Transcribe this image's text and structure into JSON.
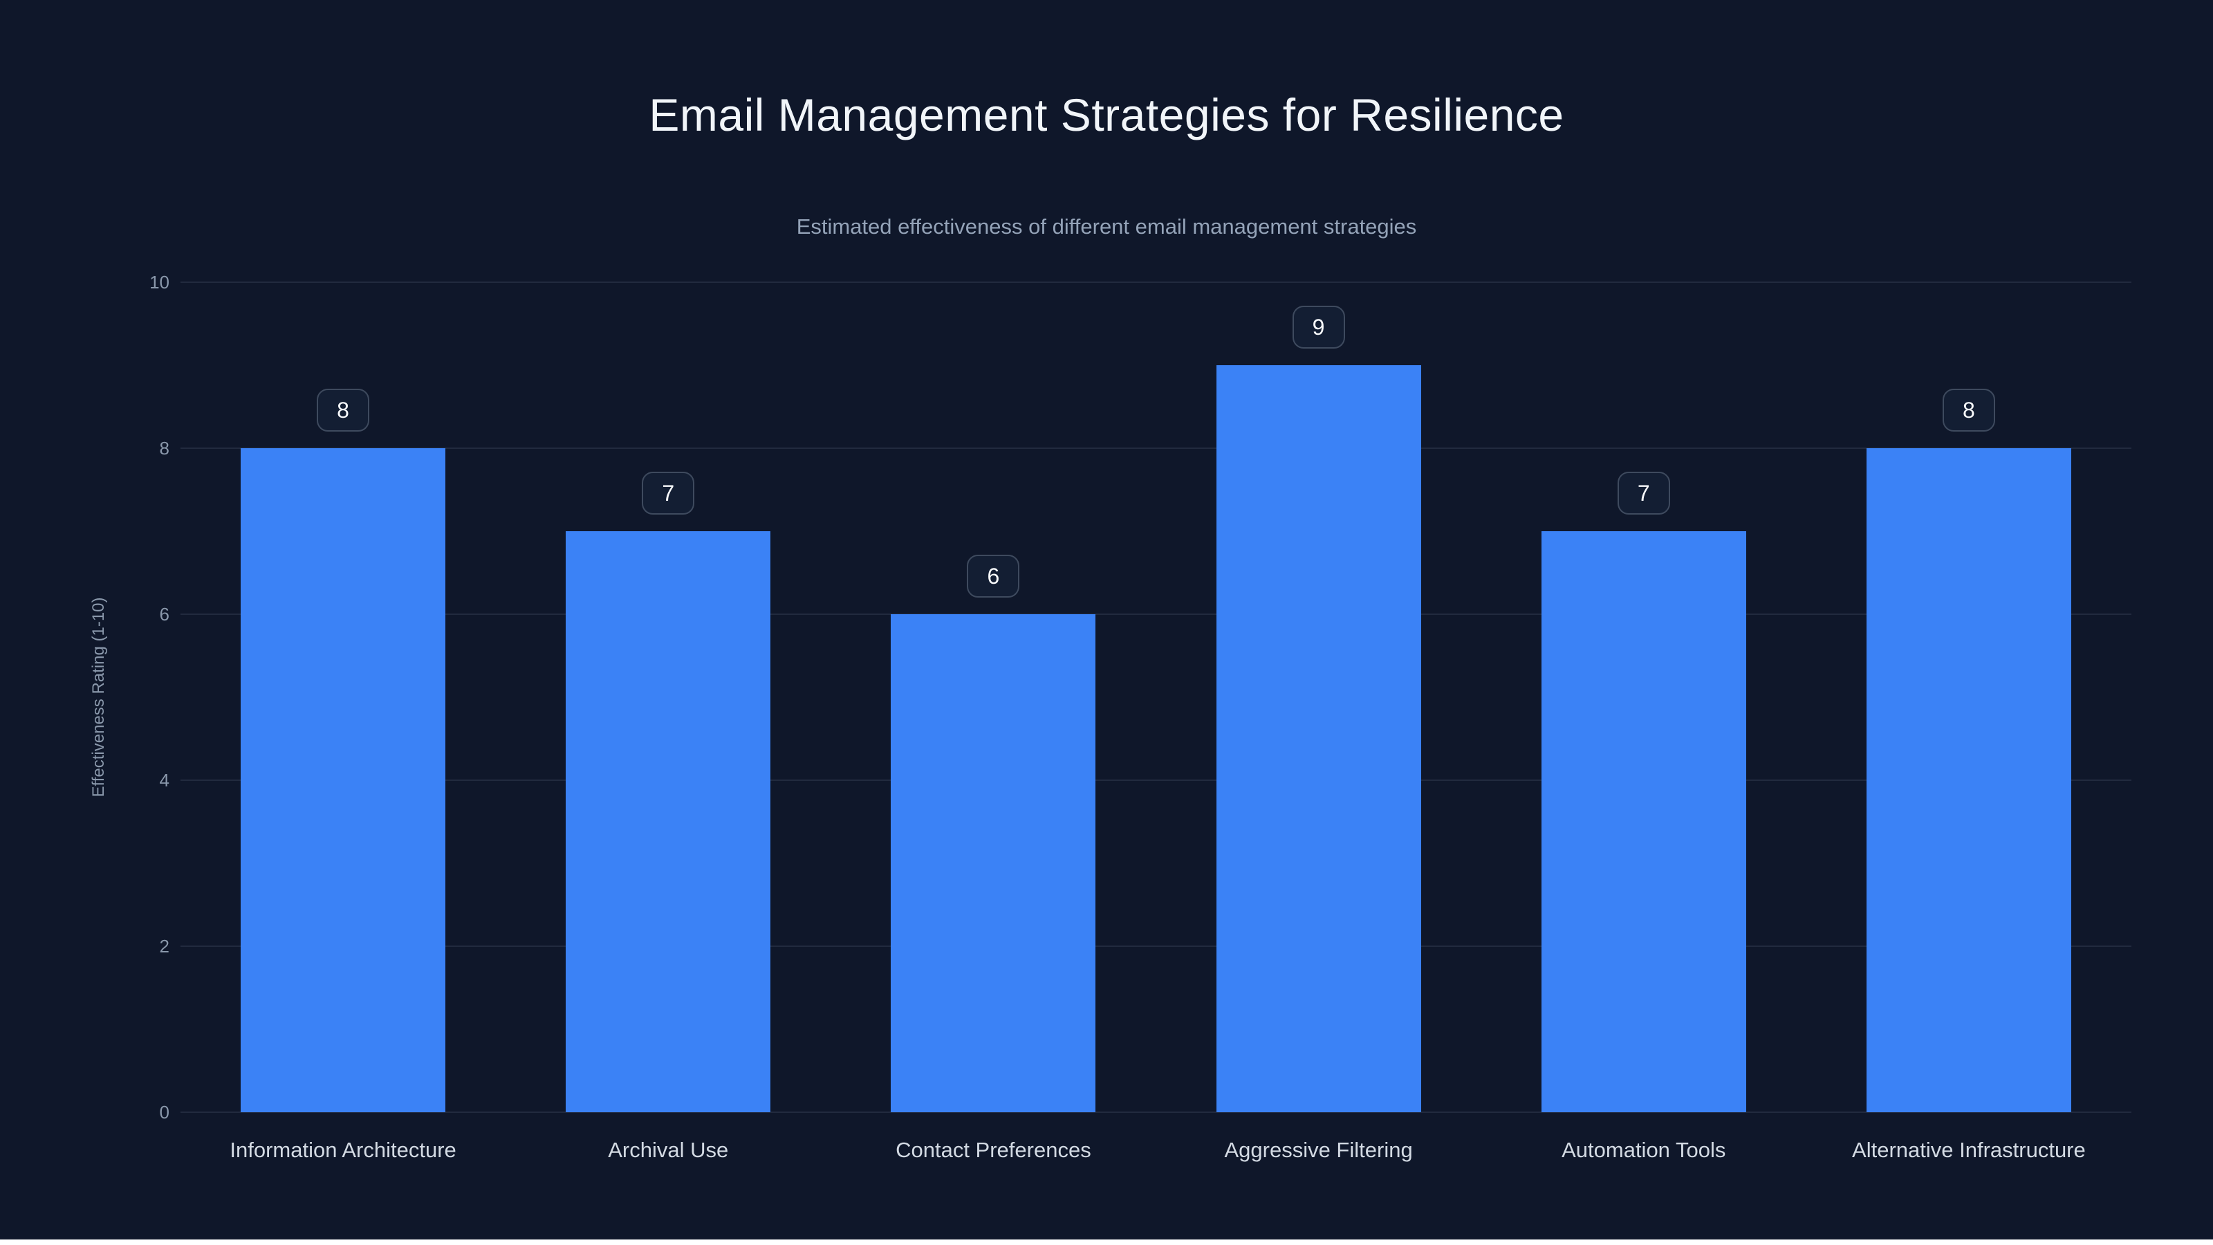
{
  "chart_data": {
    "type": "bar",
    "title": "Email Management Strategies for Resilience",
    "subtitle": "Estimated effectiveness of different email management strategies",
    "categories": [
      "Information Architecture",
      "Archival Use",
      "Contact Preferences",
      "Aggressive Filtering",
      "Automation Tools",
      "Alternative Infrastructure"
    ],
    "values": [
      8,
      7,
      6,
      9,
      7,
      8
    ],
    "value_labels": [
      "8",
      "7",
      "6",
      "9",
      "7",
      "8"
    ],
    "xlabel": "",
    "ylabel": "Effectiveness Rating (1-10)",
    "ylim": [
      0,
      10
    ],
    "yticks": [
      0,
      2,
      4,
      6,
      8,
      10
    ],
    "grid": true,
    "legend": false,
    "colors": {
      "background": "#0f172a",
      "bar": "#3b82f6",
      "title": "#f1f5f9",
      "subtitle": "#94a3b8",
      "tick": "#8a98ab",
      "category_label": "#d3dae3",
      "gridline": "rgba(148,163,184,0.14)",
      "badge_background": "#131e33",
      "badge_border": "#3e4a5e",
      "badge_text": "#f8fafc"
    }
  }
}
